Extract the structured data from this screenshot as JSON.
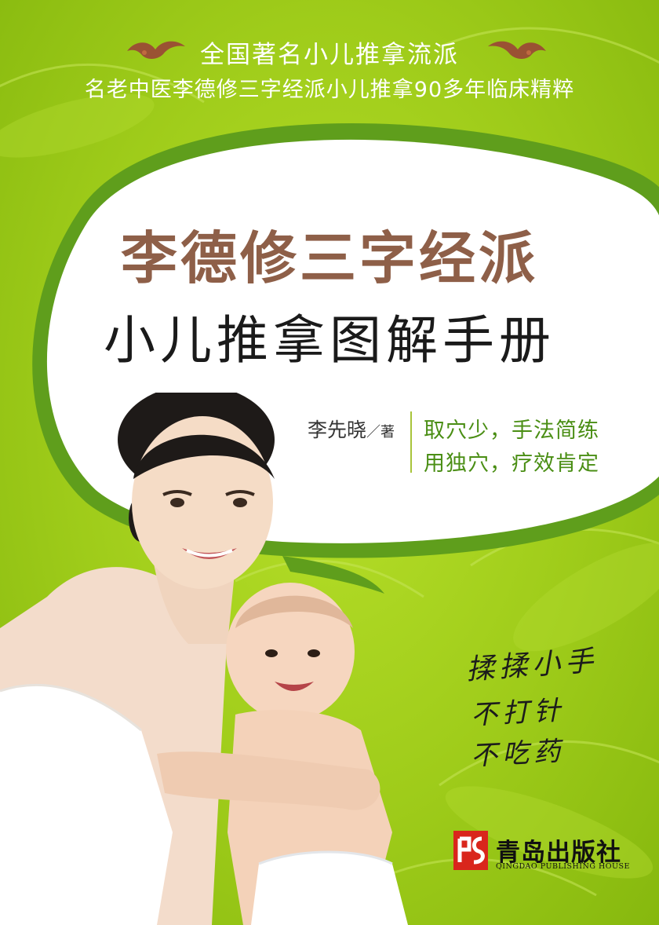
{
  "header": {
    "school_line": "全国著名小儿推拿流派",
    "subtitle_line": "名老中医李德修三字经派小儿推拿90多年临床精粹"
  },
  "title": {
    "line1": "李德修三字经派",
    "line2": "小儿推拿图解手册"
  },
  "author": {
    "name": "李先晓",
    "role": "／著"
  },
  "features": [
    "取穴少，手法简练",
    "用独穴，疗效肯定"
  ],
  "slogans": [
    "揉揉小手",
    "不打针",
    "不吃药"
  ],
  "publisher": {
    "name": "青岛出版社",
    "name_en": "QINGDAO PUBLISHING HOUSE",
    "logo_mark": "PS"
  },
  "colors": {
    "background_green": "#9fcc1a",
    "bubble_white": "#ffffff",
    "bubble_border_green": "#5f9e1c",
    "title_brown": "#8e5f48",
    "feature_green": "#4a8e14",
    "publisher_red": "#d9261c"
  },
  "icons": {
    "ornament": "floral-ornament-icon",
    "publisher_logo": "publisher-logo-icon"
  }
}
